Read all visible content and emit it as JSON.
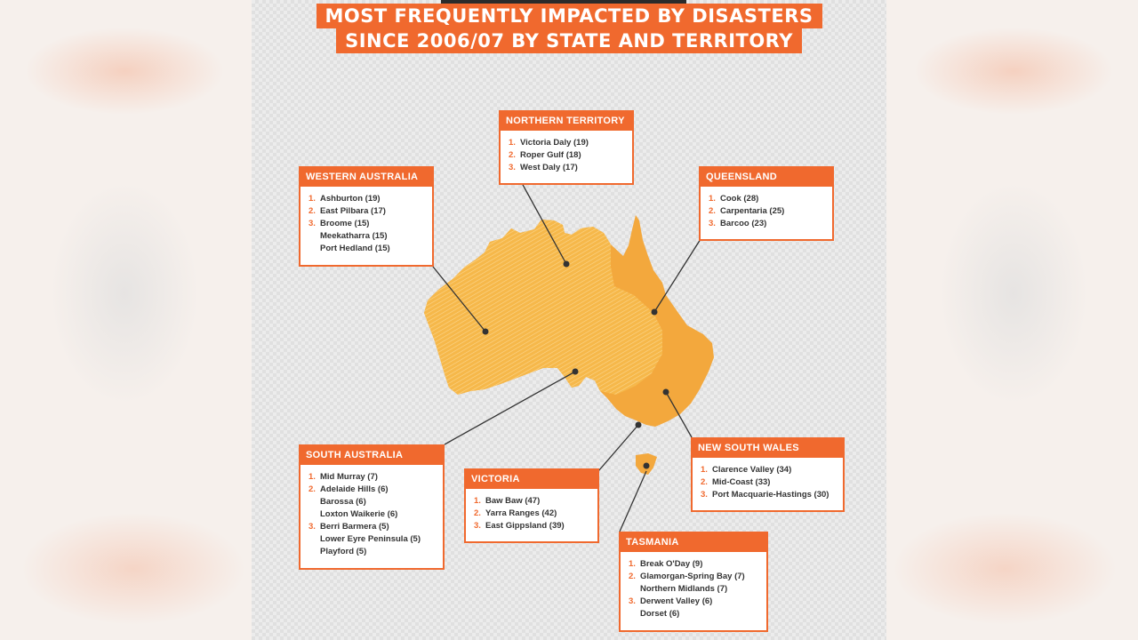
{
  "title": {
    "line1": "MOST FREQUENTLY IMPACTED BY DISASTERS",
    "line2": "SINCE 2006/07 BY STATE AND TERRITORY"
  },
  "colors": {
    "accent": "#f0692e",
    "map_light": "#f6b84a",
    "map_dark": "#f2a53a"
  },
  "regions": [
    {
      "id": "northern-territory",
      "name": "NORTHERN TERRITORY",
      "items": [
        {
          "rank": "1.",
          "text": "Victoria Daly (19)"
        },
        {
          "rank": "2.",
          "text": "Roper Gulf (18)"
        },
        {
          "rank": "3.",
          "text": "West Daly (17)"
        }
      ]
    },
    {
      "id": "western-australia",
      "name": "WESTERN AUSTRALIA",
      "items": [
        {
          "rank": "1.",
          "text": "Ashburton (19)"
        },
        {
          "rank": "2.",
          "text": "East Pilbara (17)"
        },
        {
          "rank": "3.",
          "text": "Broome (15)"
        },
        {
          "rank": "",
          "text": "Meekatharra (15)"
        },
        {
          "rank": "",
          "text": "Port Hedland (15)"
        }
      ]
    },
    {
      "id": "queensland",
      "name": "QUEENSLAND",
      "items": [
        {
          "rank": "1.",
          "text": "Cook (28)"
        },
        {
          "rank": "2.",
          "text": "Carpentaria (25)"
        },
        {
          "rank": "3.",
          "text": "Barcoo (23)"
        }
      ]
    },
    {
      "id": "south-australia",
      "name": "SOUTH AUSTRALIA",
      "items": [
        {
          "rank": "1.",
          "text": "Mid Murray (7)"
        },
        {
          "rank": "2.",
          "text": "Adelaide Hills (6)"
        },
        {
          "rank": "",
          "text": "Barossa (6)"
        },
        {
          "rank": "",
          "text": "Loxton Waikerie (6)"
        },
        {
          "rank": "3.",
          "text": "Berri Barmera (5)"
        },
        {
          "rank": "",
          "text": "Lower Eyre Peninsula (5)"
        },
        {
          "rank": "",
          "text": "Playford (5)"
        }
      ]
    },
    {
      "id": "victoria",
      "name": "VICTORIA",
      "items": [
        {
          "rank": "1.",
          "text": "Baw Baw (47)"
        },
        {
          "rank": "2.",
          "text": "Yarra Ranges (42)"
        },
        {
          "rank": "3.",
          "text": "East Gippsland (39)"
        }
      ]
    },
    {
      "id": "new-south-wales",
      "name": "NEW SOUTH WALES",
      "items": [
        {
          "rank": "1.",
          "text": "Clarence Valley (34)"
        },
        {
          "rank": "2.",
          "text": "Mid-Coast (33)"
        },
        {
          "rank": "3.",
          "text": "Port Macquarie-Hastings (30)"
        }
      ]
    },
    {
      "id": "tasmania",
      "name": "TASMANIA",
      "items": [
        {
          "rank": "1.",
          "text": "Break O'Day (9)"
        },
        {
          "rank": "2.",
          "text": "Glamorgan-Spring Bay (7)"
        },
        {
          "rank": "",
          "text": "Northern Midlands (7)"
        },
        {
          "rank": "3.",
          "text": "Derwent Valley (6)"
        },
        {
          "rank": "",
          "text": "Dorset (6)"
        }
      ]
    }
  ]
}
